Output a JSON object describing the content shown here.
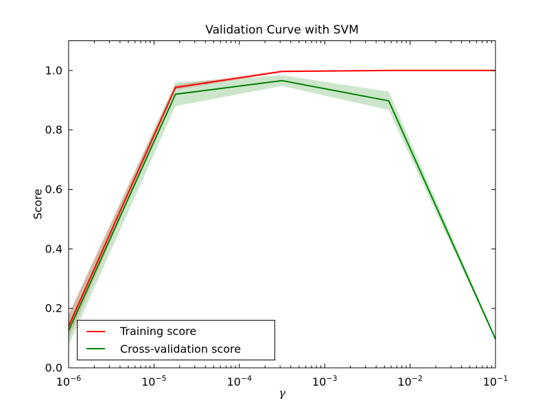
{
  "chart_data": {
    "type": "line",
    "title": "Validation Curve with SVM",
    "xlabel": "γ",
    "ylabel": "Score",
    "xscale": "log",
    "xlim": [
      1e-06,
      0.1
    ],
    "ylim": [
      0.0,
      1.1
    ],
    "grid": false,
    "legend_position": "lower left",
    "x": [
      1e-06,
      1.78e-05,
      0.000316,
      0.00562,
      0.1
    ],
    "x_tick_exponents": [
      -6,
      -5,
      -4,
      -3,
      -2,
      -1
    ],
    "y_ticks": [
      0.0,
      0.2,
      0.4,
      0.6,
      0.8,
      1.0
    ],
    "band_alpha": 0.2,
    "series": [
      {
        "name": "Training score",
        "color": "#ff0000",
        "values": [
          0.14,
          0.943,
          0.997,
          1.0,
          1.0
        ],
        "std": [
          0.042,
          0.008,
          0.003,
          0.002,
          0.001
        ]
      },
      {
        "name": "Cross-validation score",
        "color": "#008000",
        "values": [
          0.125,
          0.92,
          0.966,
          0.898,
          0.097
        ],
        "std": [
          0.05,
          0.04,
          0.018,
          0.031,
          0.006
        ]
      }
    ]
  }
}
